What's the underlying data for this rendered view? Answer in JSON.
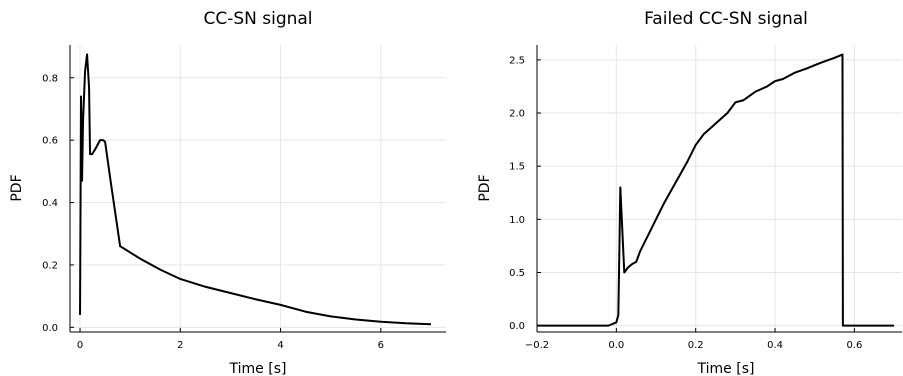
{
  "chart_data": [
    {
      "type": "line",
      "title": "CC-SN signal",
      "xlabel": "Time [s]",
      "ylabel": "PDF",
      "xlim": [
        -0.2,
        7.3
      ],
      "ylim": [
        -0.015,
        0.905
      ],
      "xticks": [
        0,
        2,
        4,
        6
      ],
      "xtick_labels": [
        "0",
        "2",
        "4",
        "6"
      ],
      "yticks": [
        0.0,
        0.2,
        0.4,
        0.6,
        0.8
      ],
      "ytick_labels": [
        "0.0",
        "0.2",
        "0.4",
        "0.6",
        "0.8"
      ],
      "grid": true,
      "legend": "none",
      "series": [
        {
          "color": "#000000",
          "x": [
            0.0,
            0.02,
            0.04,
            0.06,
            0.1,
            0.14,
            0.18,
            0.2,
            0.24,
            0.3,
            0.4,
            0.46,
            0.5,
            0.6,
            0.8,
            1.0,
            1.2,
            1.6,
            2.0,
            2.5,
            3.0,
            3.5,
            4.0,
            4.5,
            5.0,
            5.5,
            6.0,
            6.5,
            7.0
          ],
          "y": [
            0.04,
            0.74,
            0.47,
            0.66,
            0.82,
            0.875,
            0.77,
            0.555,
            0.555,
            0.57,
            0.6,
            0.6,
            0.595,
            0.48,
            0.26,
            0.24,
            0.22,
            0.185,
            0.155,
            0.13,
            0.11,
            0.09,
            0.072,
            0.05,
            0.035,
            0.025,
            0.018,
            0.013,
            0.01
          ]
        }
      ]
    },
    {
      "type": "line",
      "title": "Failed CC-SN signal",
      "xlabel": "Time [s]",
      "ylabel": "PDF",
      "xlim": [
        -0.2,
        0.72
      ],
      "ylim": [
        -0.06,
        2.64
      ],
      "xticks": [
        -0.2,
        0.0,
        0.2,
        0.4,
        0.6
      ],
      "xtick_labels": [
        "−0.2",
        "0.0",
        "0.2",
        "0.4",
        "0.6"
      ],
      "yticks": [
        0.0,
        0.5,
        1.0,
        1.5,
        2.0,
        2.5
      ],
      "ytick_labels": [
        "0.0",
        "0.5",
        "1.0",
        "1.5",
        "2.0",
        "2.5"
      ],
      "grid": true,
      "legend": "none",
      "series": [
        {
          "color": "#000000",
          "x": [
            -0.2,
            -0.1,
            -0.02,
            0.0,
            0.005,
            0.008,
            0.01,
            0.015,
            0.02,
            0.03,
            0.04,
            0.05,
            0.06,
            0.08,
            0.1,
            0.12,
            0.15,
            0.18,
            0.2,
            0.22,
            0.25,
            0.28,
            0.3,
            0.32,
            0.35,
            0.38,
            0.4,
            0.42,
            0.45,
            0.48,
            0.5,
            0.52,
            0.55,
            0.57,
            0.571,
            0.6,
            0.7
          ],
          "y": [
            0.0,
            0.0,
            0.0,
            0.03,
            0.1,
            0.8,
            1.3,
            0.9,
            0.5,
            0.55,
            0.58,
            0.6,
            0.7,
            0.85,
            1.0,
            1.15,
            1.35,
            1.55,
            1.7,
            1.8,
            1.9,
            2.0,
            2.1,
            2.12,
            2.2,
            2.25,
            2.3,
            2.32,
            2.38,
            2.42,
            2.45,
            2.48,
            2.52,
            2.55,
            0.0,
            0.0,
            0.0
          ]
        }
      ]
    }
  ]
}
